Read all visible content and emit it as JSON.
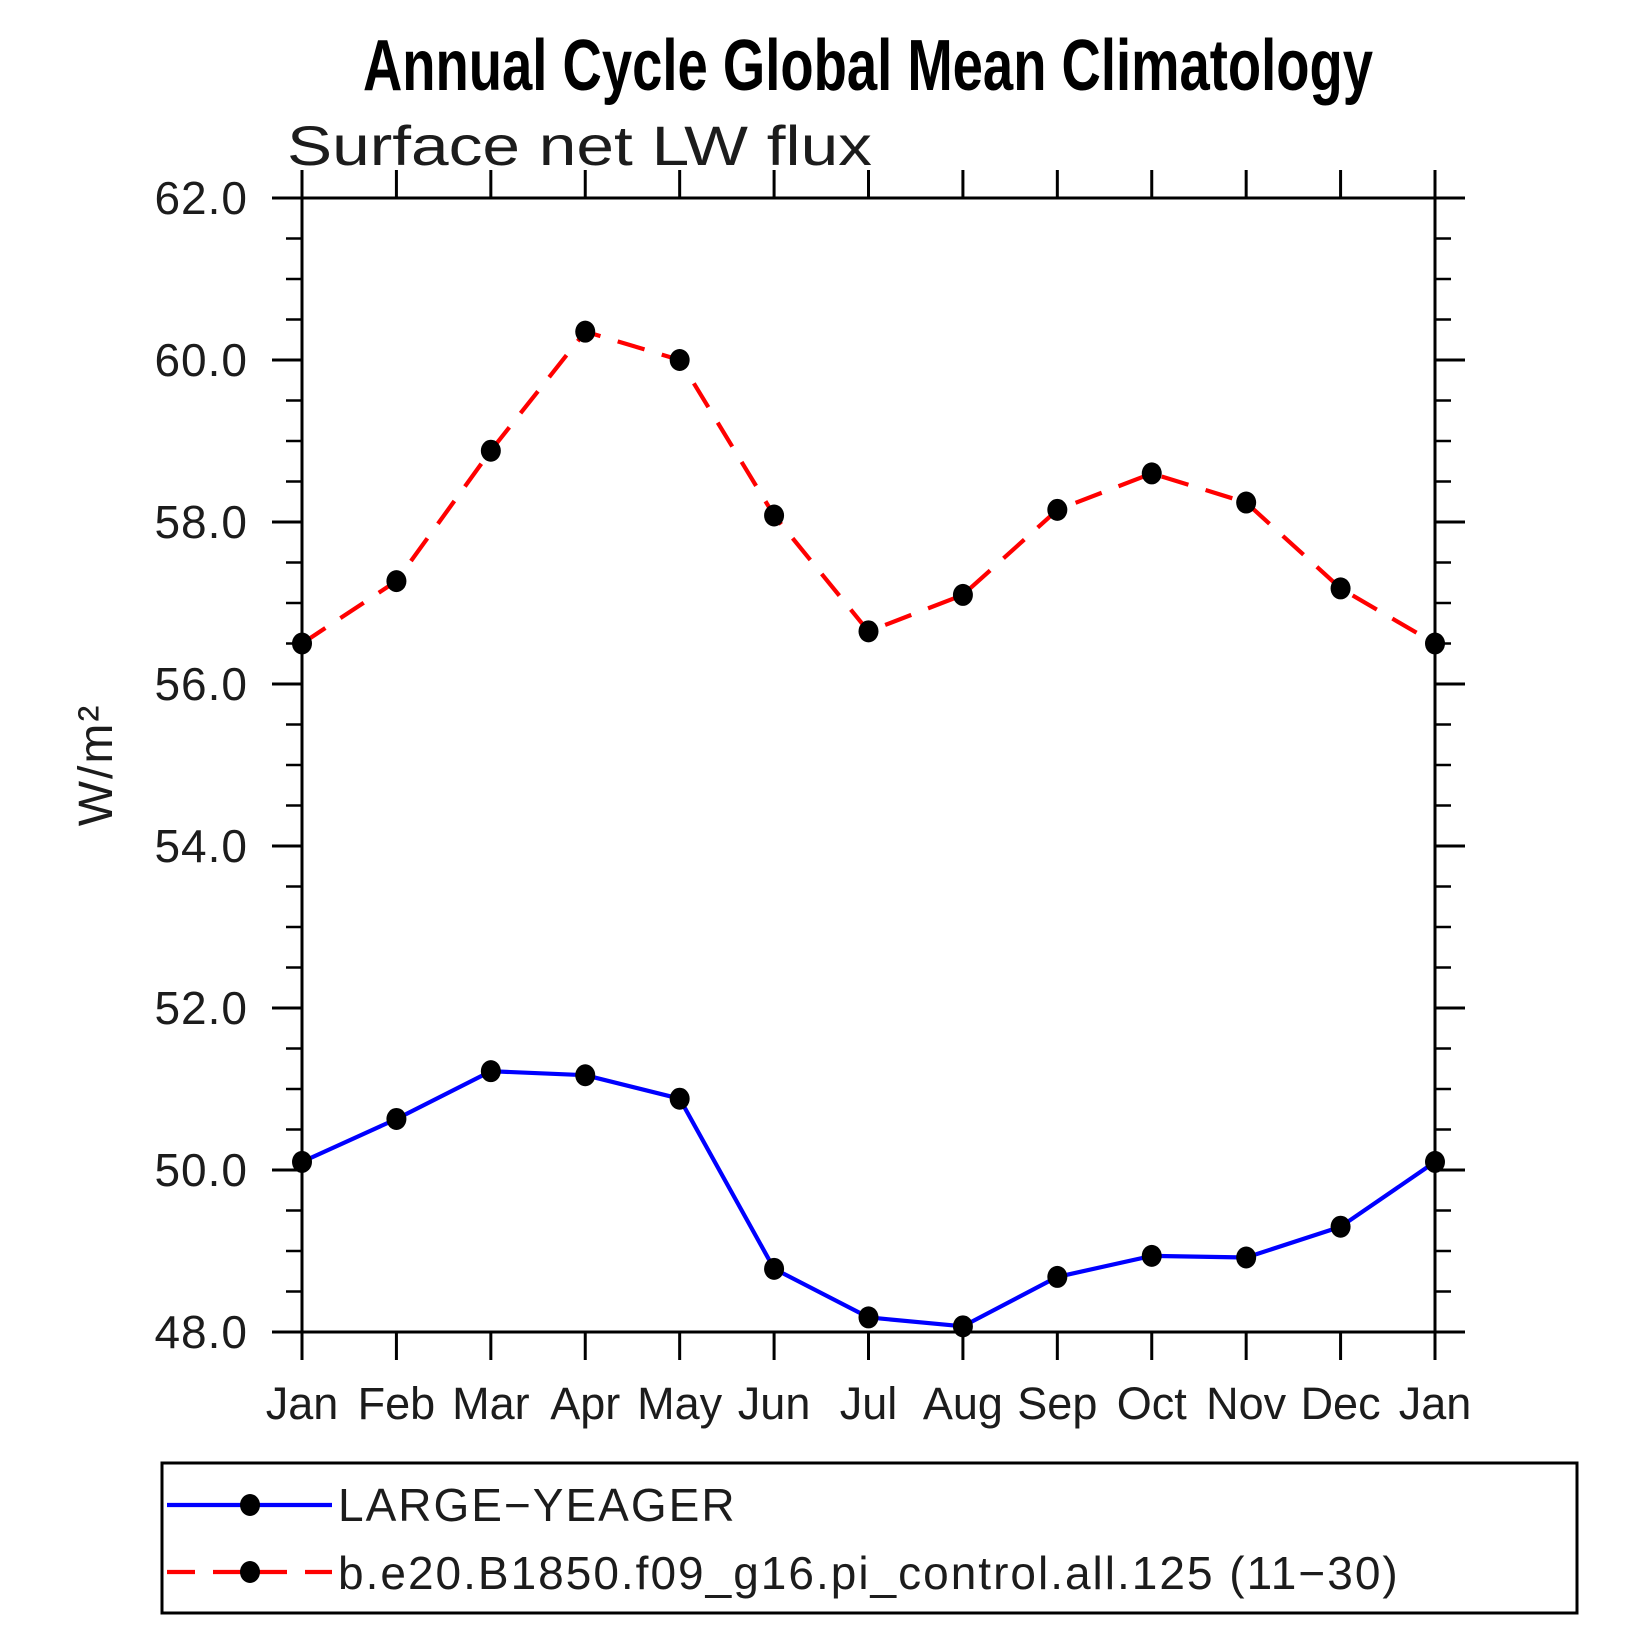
{
  "title": "Annual Cycle Global Mean Climatology",
  "subtitle": "Surface net LW flux",
  "ylabel": "W/m²",
  "chart_data": {
    "type": "line",
    "categories": [
      "Jan",
      "Feb",
      "Mar",
      "Apr",
      "May",
      "Jun",
      "Jul",
      "Aug",
      "Sep",
      "Oct",
      "Nov",
      "Dec",
      "Jan"
    ],
    "series": [
      {
        "name": "LARGE−YEAGER",
        "color": "#0000ff",
        "line_style": "solid",
        "marker": "filled-circle",
        "marker_color": "#000000",
        "values": [
          50.1,
          50.63,
          51.22,
          51.17,
          50.88,
          48.78,
          48.18,
          48.07,
          48.68,
          48.94,
          48.92,
          49.3,
          50.1
        ]
      },
      {
        "name": "b.e20.B1850.f09_g16.pi_control.all.125 (11−30)",
        "color": "#ff0000",
        "line_style": "dashed",
        "marker": "filled-circle",
        "marker_color": "#000000",
        "values": [
          56.5,
          57.27,
          58.88,
          60.35,
          60.0,
          58.08,
          56.65,
          57.1,
          58.15,
          58.6,
          58.24,
          57.18,
          56.5
        ]
      }
    ],
    "title": "Annual Cycle Global Mean Climatology",
    "subtitle": "Surface net LW flux",
    "xlabel": "",
    "ylabel": "W/m²",
    "ylim": [
      48.0,
      62.0
    ],
    "ytick_major": 2.0,
    "ytick_minor": 0.5,
    "ytick_labels": [
      "48.0",
      "50.0",
      "52.0",
      "54.0",
      "56.0",
      "58.0",
      "60.0",
      "62.0"
    ],
    "grid": false,
    "axis_box": true,
    "ticks_outside": true,
    "legend_position": "bottom"
  }
}
